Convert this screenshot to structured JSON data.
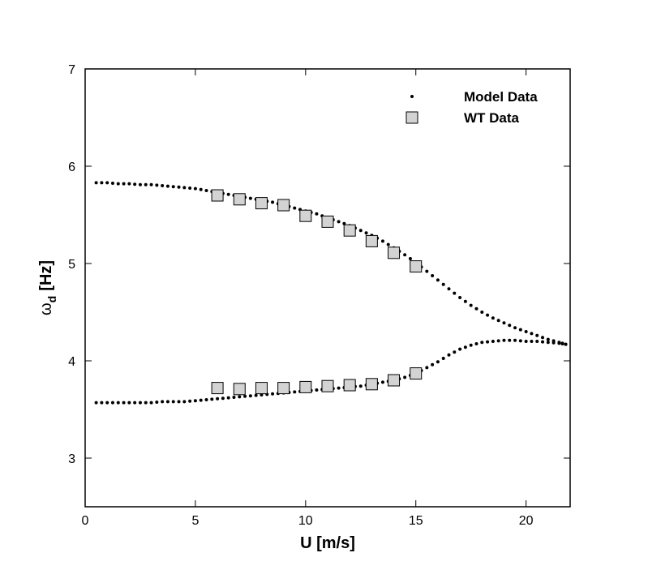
{
  "chart_data": {
    "type": "scatter",
    "title": "",
    "xlabel": "U [m/s]",
    "ylabel_symbol": "ω",
    "ylabel_subscript": "d",
    "ylabel_unit": "[Hz]",
    "xlim": [
      0,
      22
    ],
    "ylim": [
      2.5,
      7
    ],
    "xticks": [
      0,
      5,
      10,
      15,
      20
    ],
    "yticks": [
      3,
      4,
      5,
      6,
      7
    ],
    "grid": false,
    "legend_position": "top-right",
    "series": [
      {
        "name": "Model Data",
        "marker": "dot",
        "color": "#000000",
        "curves": [
          {
            "x": [
              0.5,
              1,
              1.5,
              2,
              2.5,
              3,
              3.5,
              4,
              4.5,
              5,
              5.5,
              6,
              6.5,
              7,
              7.5,
              8,
              8.5,
              9,
              9.5,
              10,
              10.5,
              11,
              11.5,
              12,
              12.5,
              13,
              13.5,
              14,
              14.5,
              15,
              15.5,
              16,
              16.5,
              17,
              17.5,
              18,
              18.5,
              19,
              19.5,
              20,
              20.5,
              21,
              21.5,
              21.8
            ],
            "y": [
              5.83,
              5.83,
              5.82,
              5.82,
              5.81,
              5.81,
              5.8,
              5.79,
              5.78,
              5.77,
              5.75,
              5.73,
              5.71,
              5.69,
              5.67,
              5.65,
              5.63,
              5.6,
              5.57,
              5.54,
              5.51,
              5.47,
              5.43,
              5.39,
              5.34,
              5.29,
              5.23,
              5.16,
              5.09,
              5.01,
              4.92,
              4.83,
              4.74,
              4.65,
              4.57,
              4.5,
              4.44,
              4.39,
              4.34,
              4.3,
              4.26,
              4.22,
              4.19,
              4.17
            ]
          },
          {
            "x": [
              0.5,
              1,
              1.5,
              2,
              2.5,
              3,
              3.5,
              4,
              4.5,
              5,
              5.5,
              6,
              6.5,
              7,
              7.5,
              8,
              8.5,
              9,
              9.5,
              10,
              10.5,
              11,
              11.5,
              12,
              12.5,
              13,
              13.5,
              14,
              14.5,
              15,
              15.5,
              16,
              16.5,
              17,
              17.5,
              18,
              18.5,
              19,
              19.5,
              20,
              20.5,
              21,
              21.5,
              21.8
            ],
            "y": [
              3.57,
              3.57,
              3.57,
              3.57,
              3.57,
              3.57,
              3.58,
              3.58,
              3.58,
              3.59,
              3.6,
              3.61,
              3.62,
              3.63,
              3.64,
              3.65,
              3.66,
              3.67,
              3.68,
              3.69,
              3.7,
              3.71,
              3.72,
              3.73,
              3.74,
              3.76,
              3.78,
              3.8,
              3.83,
              3.87,
              3.93,
              3.99,
              4.06,
              4.12,
              4.16,
              4.19,
              4.2,
              4.21,
              4.21,
              4.2,
              4.2,
              4.19,
              4.18,
              4.17
            ]
          }
        ]
      },
      {
        "name": "WT Data",
        "marker": "square",
        "color": "#d3d3d3",
        "x": [
          6,
          7,
          8,
          9,
          10,
          11,
          12,
          13,
          14,
          15,
          6,
          7,
          8,
          9,
          10,
          11,
          12,
          13,
          14,
          15
        ],
        "y": [
          5.7,
          5.66,
          5.62,
          5.6,
          5.49,
          5.43,
          5.34,
          5.23,
          5.11,
          4.97,
          3.72,
          3.71,
          3.72,
          3.72,
          3.73,
          3.74,
          3.75,
          3.76,
          3.8,
          3.87
        ]
      }
    ]
  }
}
